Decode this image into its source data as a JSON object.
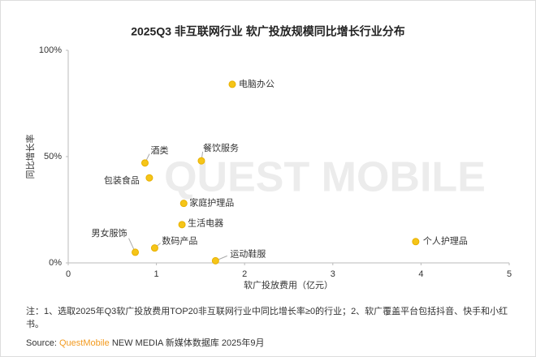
{
  "chart_data": {
    "type": "scatter",
    "title": "2025Q3 非互联网行业 软广投放规模同比增长行业分布",
    "x_label": "软广投放费用（亿元）",
    "y_label": "同比增长率",
    "categories": [
      "电脑办公",
      "酒类",
      "餐饮服务",
      "包装食品",
      "家庭护理品",
      "生活电器",
      "男女服饰",
      "数码产品",
      "运动鞋服",
      "个人护理品"
    ],
    "x": [
      1.86,
      0.87,
      1.51,
      0.92,
      1.31,
      1.29,
      0.76,
      0.98,
      1.67,
      3.94
    ],
    "values": [
      84,
      47,
      48,
      40,
      28,
      18,
      5,
      7,
      1,
      10
    ],
    "color": "#f5c518",
    "xlim": [
      0,
      5
    ],
    "xticks": [
      0,
      1,
      2,
      3,
      4,
      5
    ],
    "ylim": [
      0,
      100
    ],
    "yticks": [
      {
        "value": 0,
        "label": "0%"
      },
      {
        "value": 50,
        "label": "50%"
      },
      {
        "value": 100,
        "label": "100%"
      }
    ],
    "grid": false,
    "watermark": "QUEST MOBILE",
    "note": "注：1、选取2025年Q3软广投放费用TOP20非互联网行业中同比增长率≥0的行业；2、软广覆盖平台包括抖音、快手和小红书。",
    "source_prefix": "Source:",
    "source_brand": "QuestMobile",
    "source_rest": "NEW MEDIA 新媒体数据库 2025年9月"
  }
}
